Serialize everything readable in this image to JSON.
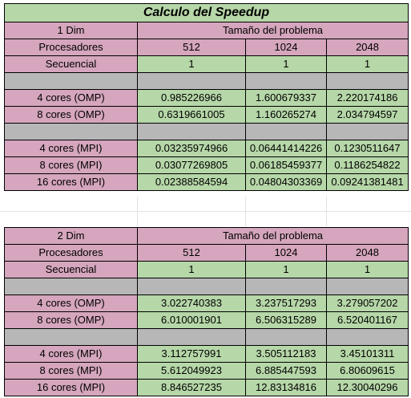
{
  "table1": {
    "title": "Calculo del Speedup",
    "dim_label": "1 Dim",
    "problem_header": "Tamaño del problema",
    "procs_label": "Procesadores",
    "sizes": [
      "512",
      "1024",
      "2048"
    ],
    "sequential": {
      "label": "Secuencial",
      "values": [
        "1",
        "1",
        "1"
      ]
    },
    "omp_rows": [
      {
        "label": "4 cores (OMP)",
        "values": [
          "0.985226966",
          "1.600679337",
          "2.220174186"
        ]
      },
      {
        "label": "8 cores (OMP)",
        "values": [
          "0.6319661005",
          "1.160265274",
          "2.034794597"
        ]
      }
    ],
    "mpi_rows": [
      {
        "label": "4 cores (MPI)",
        "values": [
          "0.03235974966",
          "0.06441414226",
          "0.1230511647"
        ]
      },
      {
        "label": "8 cores (MPI)",
        "values": [
          "0.03077269805",
          "0.06185459377",
          "0.1186254822"
        ]
      },
      {
        "label": "16 cores (MPI)",
        "values": [
          "0.02388584594",
          "0.04804303369",
          "0.09241381481"
        ]
      }
    ]
  },
  "table2": {
    "dim_label": "2 Dim",
    "problem_header": "Tamaño del problema",
    "procs_label": "Procesadores",
    "sizes": [
      "512",
      "1024",
      "2048"
    ],
    "sequential": {
      "label": "Secuencial",
      "values": [
        "1",
        "1",
        "1"
      ]
    },
    "omp_rows": [
      {
        "label": "4 cores (OMP)",
        "values": [
          "3.022740383",
          "3.237517293",
          "3.279057202"
        ]
      },
      {
        "label": "8 cores (OMP)",
        "values": [
          "6.010001901",
          "6.506315289",
          "6.520401167"
        ]
      }
    ],
    "mpi_rows": [
      {
        "label": "4 cores (MPI)",
        "values": [
          "3.112757991",
          "3.505112183",
          "3.45101311"
        ]
      },
      {
        "label": "8 cores (MPI)",
        "values": [
          "5.612049923",
          "6.885447593",
          "6.80609615"
        ]
      },
      {
        "label": "16 cores (MPI)",
        "values": [
          "8.846527235",
          "12.83134816",
          "12.30040296"
        ]
      }
    ]
  },
  "colors": {
    "pink": "#d5a6bd",
    "green": "#b6d7a8",
    "gray": "#b7b7b7"
  }
}
